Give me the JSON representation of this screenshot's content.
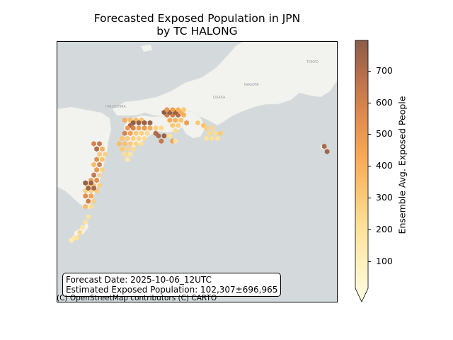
{
  "figure": {
    "title_line1": "Forecasted Exposed Population in JPN",
    "title_line2": "by TC HALONG"
  },
  "info_box": {
    "forecast_date": "Forecast Date: 2025-10-06_12UTC",
    "exposed_population": "Estimated Exposed Population: 102,307±696,965"
  },
  "attribution": "(C) OpenStreetMap contributors (C) CARTO",
  "colorbar": {
    "label": "Ensemble Avg. Exposed People",
    "ticks": [
      "100",
      "200",
      "300",
      "400",
      "500",
      "600",
      "700"
    ],
    "tick_values": [
      100,
      200,
      300,
      400,
      500,
      600,
      700
    ],
    "range": [
      15,
      795
    ],
    "extend": "min",
    "colormap": [
      "#fffde2",
      "#fff1bf",
      "#fde099",
      "#fbc46f",
      "#f7a653",
      "#e08b4e",
      "#b9704c",
      "#8b5d47"
    ]
  },
  "basemap": {
    "sea_color": "#d4dadc",
    "land_color": "#f2f2ee",
    "place_labels": [
      "TOKYO",
      "OSAKA",
      "HIROSHIMA",
      "NAGOYA"
    ]
  },
  "chart_data": {
    "type": "heatmap",
    "title": "Forecasted Exposed Population in JPN by TC HALONG",
    "colorbar_label": "Ensemble Avg. Exposed People",
    "legend": "colorbar-right",
    "cells_description": "hexbin cells over southern Kyushu, Shikoku, Kii Peninsula and offshore islands",
    "cells": [
      {
        "x": 0.13,
        "y": 0.39,
        "v": 600
      },
      {
        "x": 0.15,
        "y": 0.39,
        "v": 650
      },
      {
        "x": 0.14,
        "y": 0.41,
        "v": 700
      },
      {
        "x": 0.16,
        "y": 0.41,
        "v": 420
      },
      {
        "x": 0.15,
        "y": 0.43,
        "v": 330
      },
      {
        "x": 0.17,
        "y": 0.43,
        "v": 300
      },
      {
        "x": 0.14,
        "y": 0.45,
        "v": 560
      },
      {
        "x": 0.16,
        "y": 0.45,
        "v": 350
      },
      {
        "x": 0.13,
        "y": 0.47,
        "v": 380
      },
      {
        "x": 0.15,
        "y": 0.47,
        "v": 600
      },
      {
        "x": 0.14,
        "y": 0.49,
        "v": 520
      },
      {
        "x": 0.16,
        "y": 0.49,
        "v": 300
      },
      {
        "x": 0.13,
        "y": 0.51,
        "v": 650
      },
      {
        "x": 0.15,
        "y": 0.51,
        "v": 280
      },
      {
        "x": 0.12,
        "y": 0.53,
        "v": 480
      },
      {
        "x": 0.14,
        "y": 0.53,
        "v": 550
      },
      {
        "x": 0.11,
        "y": 0.55,
        "v": 260
      },
      {
        "x": 0.13,
        "y": 0.55,
        "v": 330
      },
      {
        "x": 0.15,
        "y": 0.55,
        "v": 300
      },
      {
        "x": 0.1,
        "y": 0.57,
        "v": 300
      },
      {
        "x": 0.12,
        "y": 0.57,
        "v": 300
      },
      {
        "x": 0.14,
        "y": 0.57,
        "v": 320
      },
      {
        "x": 0.1,
        "y": 0.54,
        "v": 780
      },
      {
        "x": 0.12,
        "y": 0.54,
        "v": 760
      },
      {
        "x": 0.11,
        "y": 0.56,
        "v": 740
      },
      {
        "x": 0.13,
        "y": 0.56,
        "v": 730
      },
      {
        "x": 0.1,
        "y": 0.59,
        "v": 560
      },
      {
        "x": 0.12,
        "y": 0.59,
        "v": 480
      },
      {
        "x": 0.11,
        "y": 0.61,
        "v": 620
      },
      {
        "x": 0.13,
        "y": 0.61,
        "v": 300
      },
      {
        "x": 0.1,
        "y": 0.63,
        "v": 380
      },
      {
        "x": 0.12,
        "y": 0.63,
        "v": 250
      },
      {
        "x": 0.11,
        "y": 0.67,
        "v": 230
      },
      {
        "x": 0.1,
        "y": 0.69,
        "v": 220
      },
      {
        "x": 0.09,
        "y": 0.71,
        "v": 200
      },
      {
        "x": 0.08,
        "y": 0.73,
        "v": 280
      },
      {
        "x": 0.07,
        "y": 0.75,
        "v": 240
      },
      {
        "x": 0.06,
        "y": 0.75,
        "v": 200
      },
      {
        "x": 0.05,
        "y": 0.76,
        "v": 180
      },
      {
        "x": 0.24,
        "y": 0.3,
        "v": 430
      },
      {
        "x": 0.26,
        "y": 0.3,
        "v": 380
      },
      {
        "x": 0.28,
        "y": 0.3,
        "v": 400
      },
      {
        "x": 0.3,
        "y": 0.3,
        "v": 360
      },
      {
        "x": 0.27,
        "y": 0.31,
        "v": 780
      },
      {
        "x": 0.29,
        "y": 0.31,
        "v": 760
      },
      {
        "x": 0.31,
        "y": 0.31,
        "v": 770
      },
      {
        "x": 0.33,
        "y": 0.31,
        "v": 750
      },
      {
        "x": 0.26,
        "y": 0.32,
        "v": 720
      },
      {
        "x": 0.25,
        "y": 0.33,
        "v": 520
      },
      {
        "x": 0.27,
        "y": 0.33,
        "v": 600
      },
      {
        "x": 0.29,
        "y": 0.33,
        "v": 480
      },
      {
        "x": 0.31,
        "y": 0.33,
        "v": 520
      },
      {
        "x": 0.33,
        "y": 0.33,
        "v": 440
      },
      {
        "x": 0.35,
        "y": 0.33,
        "v": 300
      },
      {
        "x": 0.37,
        "y": 0.33,
        "v": 260
      },
      {
        "x": 0.24,
        "y": 0.35,
        "v": 600
      },
      {
        "x": 0.26,
        "y": 0.35,
        "v": 480
      },
      {
        "x": 0.28,
        "y": 0.35,
        "v": 330
      },
      {
        "x": 0.3,
        "y": 0.35,
        "v": 300
      },
      {
        "x": 0.32,
        "y": 0.35,
        "v": 260
      },
      {
        "x": 0.35,
        "y": 0.35,
        "v": 700
      },
      {
        "x": 0.36,
        "y": 0.36,
        "v": 720
      },
      {
        "x": 0.38,
        "y": 0.36,
        "v": 760
      },
      {
        "x": 0.23,
        "y": 0.37,
        "v": 350
      },
      {
        "x": 0.25,
        "y": 0.37,
        "v": 330
      },
      {
        "x": 0.27,
        "y": 0.37,
        "v": 300
      },
      {
        "x": 0.29,
        "y": 0.37,
        "v": 280
      },
      {
        "x": 0.31,
        "y": 0.37,
        "v": 260
      },
      {
        "x": 0.37,
        "y": 0.38,
        "v": 650
      },
      {
        "x": 0.22,
        "y": 0.39,
        "v": 380
      },
      {
        "x": 0.24,
        "y": 0.39,
        "v": 360
      },
      {
        "x": 0.26,
        "y": 0.39,
        "v": 320
      },
      {
        "x": 0.28,
        "y": 0.39,
        "v": 280
      },
      {
        "x": 0.3,
        "y": 0.39,
        "v": 240
      },
      {
        "x": 0.41,
        "y": 0.38,
        "v": 480
      },
      {
        "x": 0.23,
        "y": 0.41,
        "v": 320
      },
      {
        "x": 0.25,
        "y": 0.41,
        "v": 280
      },
      {
        "x": 0.27,
        "y": 0.41,
        "v": 260
      },
      {
        "x": 0.24,
        "y": 0.43,
        "v": 250
      },
      {
        "x": 0.26,
        "y": 0.43,
        "v": 220
      },
      {
        "x": 0.25,
        "y": 0.45,
        "v": 200
      },
      {
        "x": 0.39,
        "y": 0.28,
        "v": 620
      },
      {
        "x": 0.41,
        "y": 0.28,
        "v": 620
      },
      {
        "x": 0.43,
        "y": 0.28,
        "v": 700
      },
      {
        "x": 0.45,
        "y": 0.28,
        "v": 420
      },
      {
        "x": 0.38,
        "y": 0.27,
        "v": 780
      },
      {
        "x": 0.4,
        "y": 0.27,
        "v": 780
      },
      {
        "x": 0.42,
        "y": 0.27,
        "v": 760
      },
      {
        "x": 0.44,
        "y": 0.27,
        "v": 430
      },
      {
        "x": 0.39,
        "y": 0.26,
        "v": 520
      },
      {
        "x": 0.41,
        "y": 0.26,
        "v": 480
      },
      {
        "x": 0.43,
        "y": 0.26,
        "v": 420
      },
      {
        "x": 0.45,
        "y": 0.26,
        "v": 330
      },
      {
        "x": 0.4,
        "y": 0.3,
        "v": 450
      },
      {
        "x": 0.42,
        "y": 0.3,
        "v": 420
      },
      {
        "x": 0.44,
        "y": 0.3,
        "v": 360
      },
      {
        "x": 0.46,
        "y": 0.31,
        "v": 500
      },
      {
        "x": 0.41,
        "y": 0.32,
        "v": 330
      },
      {
        "x": 0.43,
        "y": 0.32,
        "v": 300
      },
      {
        "x": 0.42,
        "y": 0.34,
        "v": 260
      },
      {
        "x": 0.4,
        "y": 0.36,
        "v": 240
      },
      {
        "x": 0.42,
        "y": 0.38,
        "v": 220
      },
      {
        "x": 0.5,
        "y": 0.31,
        "v": 330
      },
      {
        "x": 0.52,
        "y": 0.32,
        "v": 360
      },
      {
        "x": 0.53,
        "y": 0.33,
        "v": 300
      },
      {
        "x": 0.55,
        "y": 0.33,
        "v": 280
      },
      {
        "x": 0.54,
        "y": 0.35,
        "v": 260
      },
      {
        "x": 0.56,
        "y": 0.35,
        "v": 250
      },
      {
        "x": 0.58,
        "y": 0.35,
        "v": 320
      },
      {
        "x": 0.53,
        "y": 0.37,
        "v": 230
      },
      {
        "x": 0.55,
        "y": 0.37,
        "v": 240
      },
      {
        "x": 0.57,
        "y": 0.37,
        "v": 220
      },
      {
        "x": 0.95,
        "y": 0.4,
        "v": 720
      },
      {
        "x": 0.96,
        "y": 0.42,
        "v": 740
      }
    ]
  }
}
